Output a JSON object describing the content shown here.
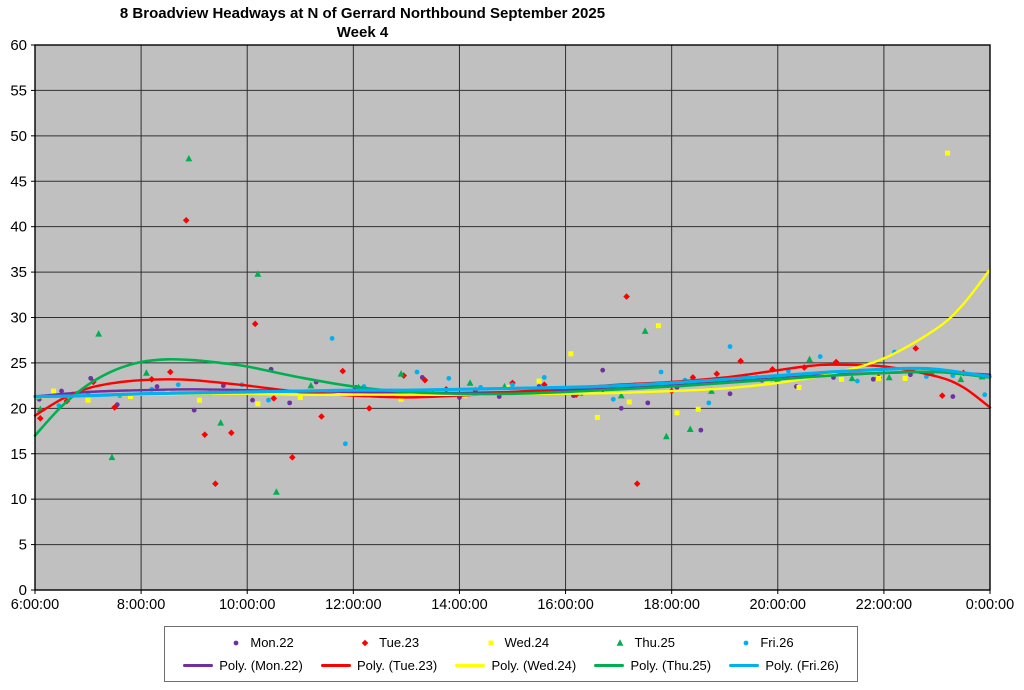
{
  "chart_data": {
    "type": "scatter",
    "title": "8 Broadview Headways at N of Gerrard Northbound September 2025",
    "subtitle": "Week 4",
    "plot_bg": "#c0c0c0",
    "grid_color": "#303030",
    "axis_color": "#000000",
    "legend_position": "bottom",
    "x_axis": {
      "min_hour": 6,
      "max_hour": 24,
      "tick_hours": [
        6,
        8,
        10,
        12,
        14,
        16,
        18,
        20,
        22,
        24
      ],
      "tick_labels": [
        "6:00:00",
        "8:00:00",
        "10:00:00",
        "12:00:00",
        "14:00:00",
        "16:00:00",
        "18:00:00",
        "20:00:00",
        "22:00:00",
        "0:00:00"
      ]
    },
    "y_axis": {
      "min": 0,
      "max": 60,
      "step": 5,
      "tick_labels": [
        "0",
        "5",
        "10",
        "15",
        "20",
        "25",
        "30",
        "35",
        "40",
        "45",
        "50",
        "55",
        "60"
      ]
    },
    "series": [
      {
        "name": "Mon.22",
        "color": "#7030a0",
        "marker": "circle",
        "points": [
          [
            6.08,
            21.0
          ],
          [
            6.5,
            21.9
          ],
          [
            7.05,
            23.3
          ],
          [
            7.55,
            20.4
          ],
          [
            8.3,
            22.4
          ],
          [
            9.0,
            19.8
          ],
          [
            9.55,
            22.5
          ],
          [
            10.1,
            20.9
          ],
          [
            10.45,
            24.3
          ],
          [
            10.8,
            20.6
          ],
          [
            11.3,
            22.9
          ],
          [
            12.05,
            22.3
          ],
          [
            12.75,
            21.4
          ],
          [
            13.3,
            23.4
          ],
          [
            14.0,
            21.2
          ],
          [
            14.75,
            21.3
          ],
          [
            15.5,
            22.4
          ],
          [
            16.15,
            21.4
          ],
          [
            16.7,
            24.2
          ],
          [
            17.05,
            20.0
          ],
          [
            17.55,
            20.6
          ],
          [
            18.1,
            22.3
          ],
          [
            18.55,
            17.6
          ],
          [
            19.1,
            21.6
          ],
          [
            19.7,
            23.1
          ],
          [
            20.35,
            22.4
          ],
          [
            21.05,
            23.4
          ],
          [
            21.8,
            23.2
          ],
          [
            22.5,
            23.7
          ],
          [
            23.3,
            21.3
          ]
        ]
      },
      {
        "name": "Tue.23",
        "color": "#ff0000",
        "marker": "diamond",
        "points": [
          [
            6.1,
            18.9
          ],
          [
            6.6,
            20.8
          ],
          [
            7.1,
            22.9
          ],
          [
            7.5,
            20.1
          ],
          [
            8.2,
            23.2
          ],
          [
            8.55,
            24.0
          ],
          [
            8.85,
            40.7
          ],
          [
            9.2,
            17.1
          ],
          [
            9.4,
            11.7
          ],
          [
            9.7,
            17.3
          ],
          [
            10.15,
            29.3
          ],
          [
            10.5,
            21.1
          ],
          [
            10.85,
            14.6
          ],
          [
            11.4,
            19.1
          ],
          [
            11.8,
            24.1
          ],
          [
            12.3,
            20.0
          ],
          [
            12.95,
            23.6
          ],
          [
            13.35,
            23.1
          ],
          [
            13.75,
            22.1
          ],
          [
            14.3,
            22.0
          ],
          [
            15.0,
            22.8
          ],
          [
            15.6,
            22.6
          ],
          [
            16.2,
            21.5
          ],
          [
            16.7,
            22.1
          ],
          [
            17.15,
            32.3
          ],
          [
            17.35,
            11.7
          ],
          [
            18.0,
            21.9
          ],
          [
            18.4,
            23.4
          ],
          [
            18.85,
            23.8
          ],
          [
            19.3,
            25.2
          ],
          [
            19.9,
            24.3
          ],
          [
            20.5,
            24.5
          ],
          [
            21.1,
            25.1
          ],
          [
            21.9,
            23.4
          ],
          [
            22.6,
            26.6
          ],
          [
            23.1,
            21.4
          ],
          [
            23.5,
            23.9
          ]
        ]
      },
      {
        "name": "Wed.24",
        "color": "#ffff00",
        "marker": "square",
        "points": [
          [
            6.35,
            21.9
          ],
          [
            7.0,
            20.9
          ],
          [
            7.8,
            21.3
          ],
          [
            8.5,
            21.8
          ],
          [
            9.1,
            20.9
          ],
          [
            10.2,
            20.5
          ],
          [
            11.0,
            21.2
          ],
          [
            11.7,
            21.7
          ],
          [
            12.3,
            21.4
          ],
          [
            12.9,
            21.0
          ],
          [
            13.5,
            21.5
          ],
          [
            14.1,
            21.4
          ],
          [
            14.9,
            22.3
          ],
          [
            15.5,
            23.0
          ],
          [
            16.1,
            26.0
          ],
          [
            16.6,
            19.0
          ],
          [
            17.2,
            20.7
          ],
          [
            17.75,
            29.1
          ],
          [
            18.1,
            19.5
          ],
          [
            18.5,
            19.9
          ],
          [
            19.2,
            23.3
          ],
          [
            19.8,
            22.8
          ],
          [
            20.4,
            22.3
          ],
          [
            21.2,
            23.2
          ],
          [
            21.9,
            23.3
          ],
          [
            22.4,
            23.3
          ],
          [
            23.2,
            48.1
          ]
        ]
      },
      {
        "name": "Thu.25",
        "color": "#00b050",
        "marker": "triangle",
        "points": [
          [
            6.1,
            19.9
          ],
          [
            6.7,
            21.5
          ],
          [
            7.2,
            28.2
          ],
          [
            7.45,
            14.6
          ],
          [
            8.1,
            23.9
          ],
          [
            8.9,
            47.5
          ],
          [
            9.5,
            18.4
          ],
          [
            10.2,
            34.8
          ],
          [
            10.55,
            10.8
          ],
          [
            11.2,
            22.5
          ],
          [
            12.1,
            22.3
          ],
          [
            12.9,
            23.8
          ],
          [
            13.5,
            21.7
          ],
          [
            14.2,
            22.8
          ],
          [
            14.85,
            22.4
          ],
          [
            15.4,
            22.0
          ],
          [
            16.0,
            21.8
          ],
          [
            16.55,
            22.2
          ],
          [
            17.05,
            21.4
          ],
          [
            17.5,
            28.5
          ],
          [
            17.9,
            16.9
          ],
          [
            18.35,
            17.7
          ],
          [
            18.75,
            21.9
          ],
          [
            19.4,
            23.5
          ],
          [
            20.0,
            23.2
          ],
          [
            20.6,
            25.4
          ],
          [
            21.4,
            23.3
          ],
          [
            22.1,
            23.4
          ],
          [
            22.9,
            23.9
          ],
          [
            23.45,
            23.2
          ],
          [
            23.85,
            23.5
          ]
        ]
      },
      {
        "name": "Fri.26",
        "color": "#00b0f0",
        "marker": "circle",
        "points": [
          [
            6.05,
            21.2
          ],
          [
            6.45,
            20.3
          ],
          [
            7.0,
            21.7
          ],
          [
            7.6,
            21.4
          ],
          [
            8.2,
            22.1
          ],
          [
            8.7,
            22.6
          ],
          [
            9.3,
            21.7
          ],
          [
            9.9,
            22.6
          ],
          [
            10.4,
            20.9
          ],
          [
            11.0,
            21.8
          ],
          [
            11.6,
            27.7
          ],
          [
            11.85,
            16.1
          ],
          [
            12.2,
            22.4
          ],
          [
            12.7,
            21.9
          ],
          [
            13.2,
            24.0
          ],
          [
            13.8,
            23.3
          ],
          [
            14.4,
            22.3
          ],
          [
            15.0,
            22.6
          ],
          [
            15.6,
            23.4
          ],
          [
            16.3,
            21.6
          ],
          [
            16.9,
            21.0
          ],
          [
            17.3,
            22.6
          ],
          [
            17.8,
            24.0
          ],
          [
            18.25,
            23.1
          ],
          [
            18.7,
            20.6
          ],
          [
            19.1,
            26.8
          ],
          [
            19.6,
            23.4
          ],
          [
            20.2,
            24.1
          ],
          [
            20.8,
            25.7
          ],
          [
            21.5,
            23.0
          ],
          [
            22.2,
            26.2
          ],
          [
            22.8,
            23.5
          ],
          [
            23.3,
            23.6
          ],
          [
            23.9,
            21.5
          ]
        ]
      }
    ],
    "trendlines": [
      {
        "name": "Poly. (Mon.22)",
        "color": "#7030a0",
        "width": 2.4,
        "points": [
          [
            6,
            21.3
          ],
          [
            7,
            21.8
          ],
          [
            8,
            22.0
          ],
          [
            9,
            22.1
          ],
          [
            10,
            22.0
          ],
          [
            11,
            21.9
          ],
          [
            12,
            21.8
          ],
          [
            13,
            21.7
          ],
          [
            14,
            21.7
          ],
          [
            15,
            21.8
          ],
          [
            16,
            22.0
          ],
          [
            17,
            22.2
          ],
          [
            18,
            22.5
          ],
          [
            19,
            22.9
          ],
          [
            20,
            23.3
          ],
          [
            21,
            23.7
          ],
          [
            22,
            23.9
          ],
          [
            23,
            24.0
          ],
          [
            24,
            23.7
          ]
        ]
      },
      {
        "name": "Poly. (Tue.23)",
        "color": "#ff0000",
        "width": 2.4,
        "points": [
          [
            6,
            19.2
          ],
          [
            6.5,
            21.0
          ],
          [
            7,
            22.2
          ],
          [
            7.5,
            22.8
          ],
          [
            8,
            23.1
          ],
          [
            8.5,
            23.2
          ],
          [
            9,
            23.1
          ],
          [
            10,
            22.5
          ],
          [
            11,
            21.8
          ],
          [
            12,
            21.4
          ],
          [
            13,
            21.2
          ],
          [
            14,
            21.4
          ],
          [
            15,
            21.8
          ],
          [
            16,
            22.2
          ],
          [
            17,
            22.6
          ],
          [
            18,
            22.9
          ],
          [
            19,
            23.4
          ],
          [
            20,
            24.2
          ],
          [
            20.5,
            24.6
          ],
          [
            21,
            24.8
          ],
          [
            22,
            24.6
          ],
          [
            23,
            23.5
          ],
          [
            23.5,
            22.3
          ],
          [
            24,
            20.1
          ]
        ]
      },
      {
        "name": "Poly. (Wed.24)",
        "color": "#ffff00",
        "width": 2.4,
        "points": [
          [
            6,
            21.2
          ],
          [
            7,
            21.4
          ],
          [
            8,
            21.5
          ],
          [
            9,
            21.6
          ],
          [
            10,
            21.6
          ],
          [
            11,
            21.5
          ],
          [
            12,
            21.5
          ],
          [
            13,
            21.5
          ],
          [
            14,
            21.5
          ],
          [
            15,
            21.6
          ],
          [
            16,
            21.6
          ],
          [
            17,
            21.7
          ],
          [
            18,
            21.9
          ],
          [
            19,
            22.2
          ],
          [
            20,
            22.8
          ],
          [
            21,
            23.8
          ],
          [
            22,
            25.5
          ],
          [
            23,
            28.8
          ],
          [
            23.5,
            31.5
          ],
          [
            24,
            35.3
          ]
        ]
      },
      {
        "name": "Poly. (Thu.25)",
        "color": "#00b050",
        "width": 2.6,
        "points": [
          [
            6,
            17.0
          ],
          [
            6.5,
            20.2
          ],
          [
            7,
            22.6
          ],
          [
            7.5,
            24.2
          ],
          [
            8,
            25.1
          ],
          [
            8.5,
            25.4
          ],
          [
            9,
            25.3
          ],
          [
            9.5,
            25.0
          ],
          [
            10,
            24.6
          ],
          [
            11,
            23.4
          ],
          [
            12,
            22.4
          ],
          [
            13,
            21.8
          ],
          [
            14,
            21.6
          ],
          [
            15,
            21.6
          ],
          [
            16,
            21.8
          ],
          [
            17,
            22.1
          ],
          [
            18,
            22.4
          ],
          [
            19,
            22.8
          ],
          [
            20,
            23.2
          ],
          [
            21,
            23.6
          ],
          [
            22,
            23.9
          ],
          [
            23,
            24.0
          ],
          [
            24,
            23.4
          ]
        ]
      },
      {
        "name": "Poly. (Fri.26)",
        "color": "#00b0f0",
        "width": 3.2,
        "points": [
          [
            6,
            21.3
          ],
          [
            7,
            21.4
          ],
          [
            8,
            21.6
          ],
          [
            9,
            21.7
          ],
          [
            10,
            21.8
          ],
          [
            11,
            21.9
          ],
          [
            12,
            22.0
          ],
          [
            13,
            22.0
          ],
          [
            14,
            22.1
          ],
          [
            15,
            22.2
          ],
          [
            16,
            22.3
          ],
          [
            17,
            22.5
          ],
          [
            18,
            22.8
          ],
          [
            19,
            23.2
          ],
          [
            20,
            23.6
          ],
          [
            21,
            24.0
          ],
          [
            22,
            24.3
          ],
          [
            22.5,
            24.4
          ],
          [
            23,
            24.3
          ],
          [
            24,
            23.5
          ]
        ]
      }
    ]
  }
}
